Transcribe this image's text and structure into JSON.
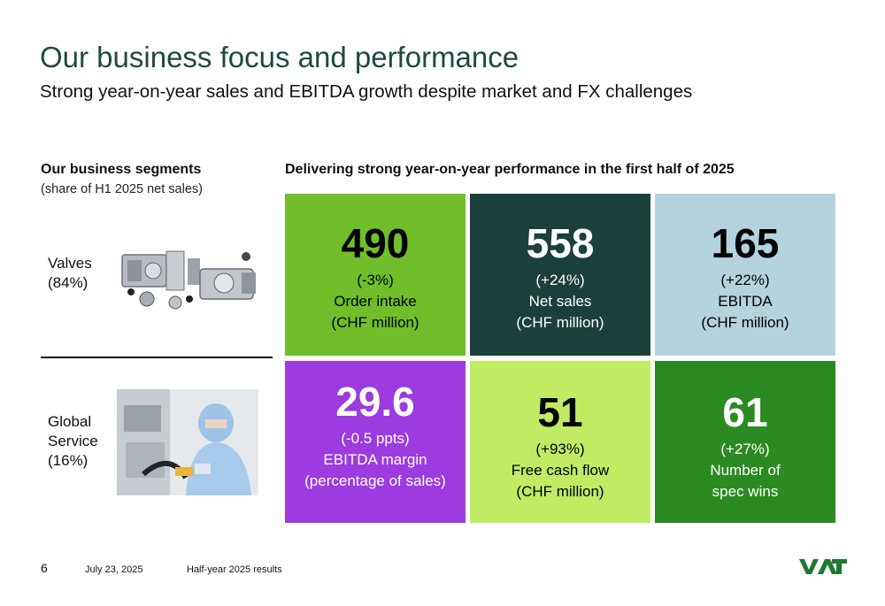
{
  "header": {
    "title": "Our business focus and performance",
    "subtitle": "Strong year-on-year sales and EBITDA growth despite market and FX challenges"
  },
  "segments": {
    "heading": "Our business segments",
    "subheading": "(share of H1 2025 net sales)",
    "items": [
      {
        "line1": "Valves",
        "line2": "(84%)",
        "line3": ""
      },
      {
        "line1": "Global",
        "line2": "Service",
        "line3": "(16%)"
      }
    ]
  },
  "performance": {
    "heading": "Delivering strong year-on-year performance in the first half of 2025",
    "tiles": [
      {
        "value": "490",
        "change": "(-3%)",
        "label1": "Order intake",
        "label2": "(CHF million)",
        "bg": "#6fbe2a",
        "fg": "#000000"
      },
      {
        "value": "558",
        "change": "(+24%)",
        "label1": "Net sales",
        "label2": "(CHF million)",
        "bg": "#1b3f3b",
        "fg": "#ffffff"
      },
      {
        "value": "165",
        "change": "(+22%)",
        "label1": "EBITDA",
        "label2": "(CHF million)",
        "bg": "#b4d3de",
        "fg": "#000000"
      },
      {
        "value": "29.6",
        "change": "(-0.5 ppts)",
        "label1": "EBITDA margin",
        "label2": "(percentage of sales)",
        "bg": "#9b3be0",
        "fg": "#ffffff"
      },
      {
        "value": "51",
        "change": "(+93%)",
        "label1": "Free cash flow",
        "label2": "(CHF million)",
        "bg": "#bfec63",
        "fg": "#000000"
      },
      {
        "value": "61",
        "change": "(+27%)",
        "label1": "Number of",
        "label2": "spec wins",
        "bg": "#2c8a22",
        "fg": "#ffffff"
      }
    ]
  },
  "footer": {
    "page": "6",
    "date": "July 23, 2025",
    "doc": "Half-year 2025 results",
    "logo_text": "VAT",
    "logo_color": "#1d7a32"
  }
}
